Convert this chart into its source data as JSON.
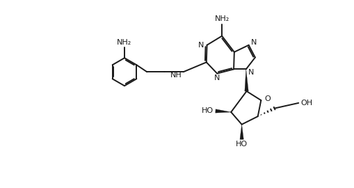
{
  "bg": "#ffffff",
  "lc": "#1a1a1a",
  "lw": 1.4,
  "fs": 8.0,
  "fig_w": 5.1,
  "fig_h": 2.7,
  "dpi": 100
}
